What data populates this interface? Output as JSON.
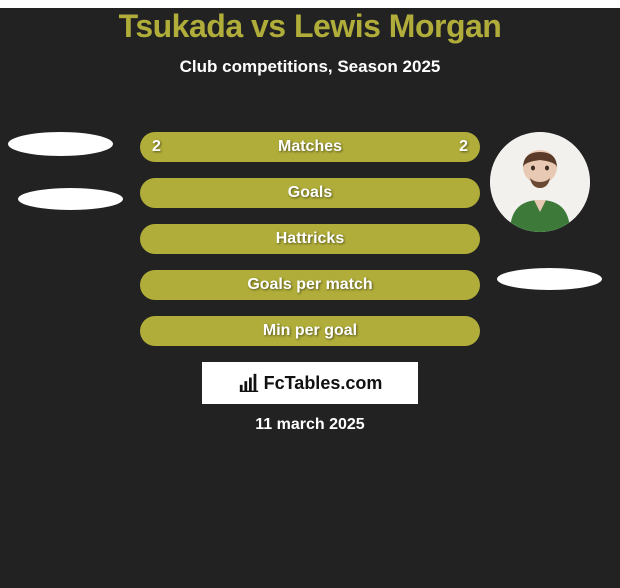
{
  "background_color": "#222222",
  "text_color": "#ffffff",
  "title": {
    "text": "Tsukada vs Lewis Morgan",
    "color": "#b0ad3a",
    "fontsize": 32
  },
  "subtitle": {
    "text": "Club competitions, Season 2025",
    "color": "#ffffff",
    "fontsize": 17
  },
  "avatars": {
    "left_blank_color": "#ffffff",
    "right_photo_bg": "#f3f1ee",
    "right_blank_color": "#ffffff"
  },
  "rows": {
    "bar_color": "#b0ad3a",
    "bar_text_color": "#ffffff",
    "label_fontsize": 16,
    "value_fontsize": 16,
    "items": [
      {
        "label": "Matches",
        "left": "2",
        "right": "2"
      },
      {
        "label": "Goals",
        "left": "",
        "right": ""
      },
      {
        "label": "Hattricks",
        "left": "",
        "right": ""
      },
      {
        "label": "Goals per match",
        "left": "",
        "right": ""
      },
      {
        "label": "Min per goal",
        "left": "",
        "right": ""
      }
    ]
  },
  "branding": {
    "background_color": "#ffffff",
    "text": "FcTables.com",
    "fontsize": 18
  },
  "date": {
    "text": "11 march 2025",
    "color": "#ffffff",
    "fontsize": 16
  }
}
